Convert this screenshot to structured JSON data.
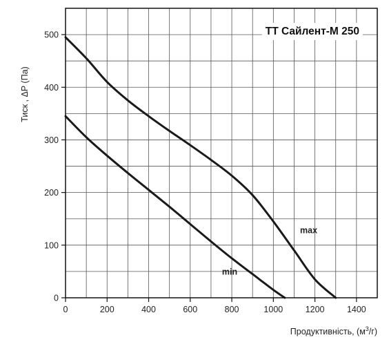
{
  "chart_data": {
    "type": "line",
    "title": "ТТ Сайлент-М 250",
    "ylabel": "Тиск , ΔP (Па)",
    "xlabel_main": "Продуктивність, (м",
    "xlabel_sup": "3",
    "xlabel_tail": "/г)",
    "xlim": [
      0,
      1500
    ],
    "ylim": [
      0,
      550
    ],
    "x_ticks": [
      0,
      200,
      400,
      600,
      800,
      1000,
      1200,
      1400
    ],
    "y_ticks": [
      0,
      100,
      200,
      300,
      400,
      500
    ],
    "x_minor_step": 100,
    "y_minor_step": 50,
    "grid": true,
    "series": [
      {
        "name": "max",
        "x": [
          0,
          100,
          200,
          300,
          400,
          500,
          600,
          700,
          800,
          900,
          1000,
          1100,
          1200,
          1300,
          1330
        ],
        "y": [
          495,
          455,
          410,
          375,
          345,
          317,
          290,
          262,
          232,
          195,
          145,
          90,
          35,
          0,
          0
        ]
      },
      {
        "name": "min",
        "x": [
          0,
          100,
          200,
          300,
          400,
          500,
          600,
          700,
          800,
          900,
          1000,
          1055
        ],
        "y": [
          345,
          305,
          270,
          237,
          205,
          173,
          140,
          107,
          75,
          45,
          15,
          0
        ]
      }
    ]
  }
}
